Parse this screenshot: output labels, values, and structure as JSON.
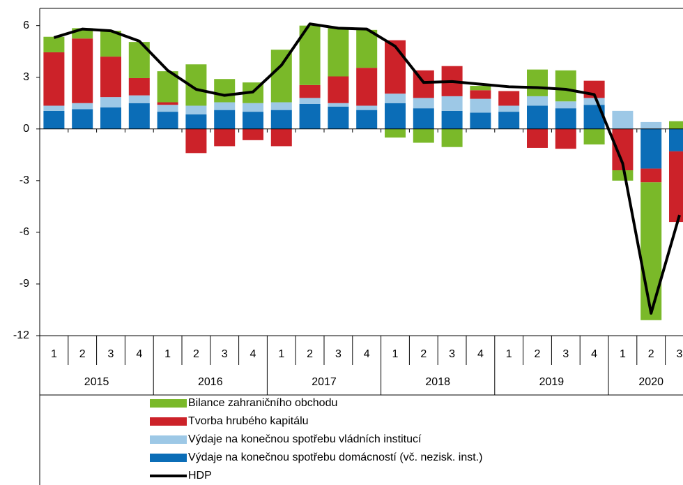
{
  "chart_data": {
    "type": "bar",
    "stacked": true,
    "categories": [
      "1",
      "2",
      "3",
      "4",
      "1",
      "2",
      "3",
      "4",
      "1",
      "2",
      "3",
      "4",
      "1",
      "2",
      "3",
      "4",
      "1",
      "2",
      "3",
      "4",
      "1",
      "2",
      "3"
    ],
    "groups": [
      "2015",
      "2016",
      "2017",
      "2018",
      "2019",
      "2020"
    ],
    "ylim": [
      -12,
      7
    ],
    "yticks": [
      6,
      3,
      0,
      -3,
      -6,
      -9,
      -12
    ],
    "series": [
      {
        "name": "Výdaje na konečnou spotřebu domácností (vč. nezisk. inst.)",
        "color": "#0b6db7",
        "values": [
          1.05,
          1.15,
          1.25,
          1.5,
          1.0,
          0.85,
          1.1,
          1.0,
          1.1,
          1.45,
          1.3,
          1.1,
          1.5,
          1.2,
          1.05,
          0.95,
          1.0,
          1.35,
          1.2,
          1.4,
          0,
          -2.3,
          -1.3
        ]
      },
      {
        "name": "Výdaje na konečnou spotřebu vládních institucí",
        "color": "#9dc8e6",
        "values": [
          0.3,
          0.35,
          0.6,
          0.45,
          0.4,
          0.5,
          0.45,
          0.5,
          0.45,
          0.35,
          0.2,
          0.25,
          0.55,
          0.6,
          0.85,
          0.8,
          0.35,
          0.55,
          0.4,
          0.4,
          1.05,
          0.4,
          0
        ]
      },
      {
        "name": "Tvorba hrubého kapitálu",
        "color": "#cc2229",
        "values": [
          3.1,
          3.75,
          2.35,
          1.0,
          0.15,
          -1.4,
          -1.0,
          -0.65,
          -1.0,
          0.75,
          1.55,
          2.2,
          3.1,
          1.6,
          1.75,
          0.5,
          0.85,
          -1.1,
          -1.15,
          1.0,
          -2.4,
          -0.8,
          -4.1
        ]
      },
      {
        "name": "Bilance zahraničního obchodu",
        "color": "#7ab929",
        "values": [
          0.9,
          0.6,
          1.5,
          2.1,
          1.8,
          2.4,
          1.35,
          1.2,
          3.05,
          3.45,
          2.8,
          2.2,
          -0.5,
          -0.8,
          -1.05,
          0.25,
          0,
          1.55,
          1.8,
          -0.9,
          -0.6,
          -8.0,
          0.45
        ]
      },
      {
        "name": "HDP",
        "type": "line",
        "color": "#000000",
        "values": [
          5.3,
          5.8,
          5.7,
          5.1,
          3.4,
          2.3,
          1.95,
          2.15,
          3.7,
          6.1,
          5.85,
          5.8,
          4.8,
          2.7,
          2.75,
          2.6,
          2.45,
          2.4,
          2.3,
          2.0,
          -2.0,
          -10.7,
          -5.0
        ]
      }
    ],
    "legend_order": [
      3,
      2,
      1,
      0,
      4
    ]
  }
}
